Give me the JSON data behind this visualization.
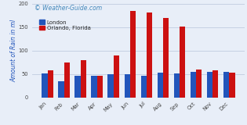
{
  "months": [
    "Jan",
    "Feb",
    "Mar",
    "Apr",
    "May",
    "Jun",
    "Jul",
    "Aug",
    "Sep",
    "Oct",
    "Nov",
    "Dec"
  ],
  "london": [
    52,
    34,
    47,
    46,
    50,
    49,
    46,
    53,
    51,
    55,
    55,
    55
  ],
  "orlando": [
    58,
    75,
    80,
    46,
    90,
    185,
    182,
    170,
    152,
    60,
    58,
    53
  ],
  "london_color": "#2255bb",
  "orlando_color": "#cc1111",
  "ylabel": "Amount of Rain in ml",
  "ylim": [
    0,
    200
  ],
  "yticks": [
    0,
    50,
    100,
    150,
    200
  ],
  "watermark": "© Weather-Guide.com",
  "legend_london": "London",
  "legend_orlando": "Orlando, Florida",
  "bg_color": "#e8eef8",
  "grid_color": "#c0cce0",
  "ylabel_color": "#2255bb",
  "watermark_color": "#4488bb",
  "watermark_fontsize": 5.5,
  "axis_label_fontsize": 5.5,
  "tick_fontsize": 4.8,
  "legend_fontsize": 5.0,
  "bar_width": 0.35
}
